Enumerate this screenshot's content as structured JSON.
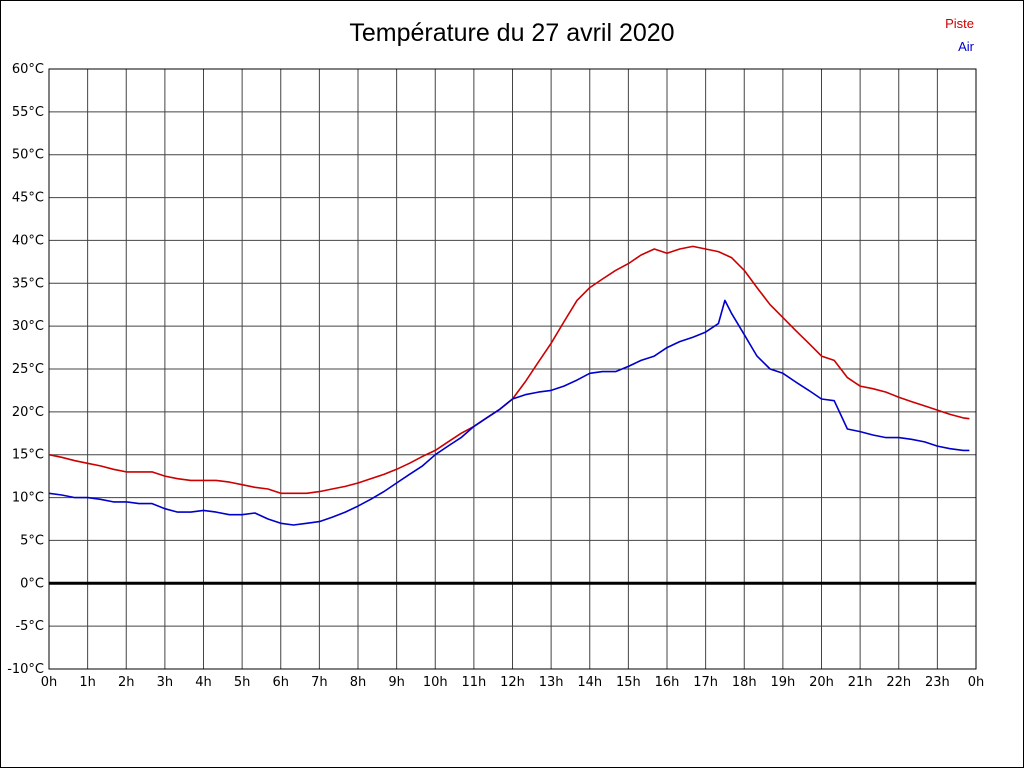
{
  "title": "Température du 27 avril 2020",
  "legend": [
    {
      "label": "Piste",
      "color": "#cc0000"
    },
    {
      "label": "Air",
      "color": "#0000cc"
    }
  ],
  "chart_data": {
    "type": "line",
    "title": "Température du 27 avril 2020",
    "xlabel": "",
    "ylabel": "",
    "xlim": [
      0,
      24
    ],
    "ylim": [
      -10,
      60
    ],
    "y_tick_step": 5,
    "grid": true,
    "grid_color": "#444444",
    "legend_position": "top-right",
    "y_tick_labels": [
      "60°C",
      "55°C",
      "50°C",
      "45°C",
      "40°C",
      "35°C",
      "30°C",
      "25°C",
      "20°C",
      "15°C",
      "10°C",
      "5°C",
      "0°C",
      "-5°C",
      "-10°C"
    ],
    "x_tick_labels": [
      "0h",
      "1h",
      "2h",
      "3h",
      "4h",
      "5h",
      "6h",
      "7h",
      "8h",
      "9h",
      "10h",
      "11h",
      "12h",
      "13h",
      "14h",
      "15h",
      "16h",
      "17h",
      "18h",
      "19h",
      "20h",
      "21h",
      "22h",
      "23h",
      "0h"
    ],
    "zero_line": {
      "value": 0,
      "color": "#000000",
      "width": 3
    },
    "series": [
      {
        "name": "Piste",
        "color": "#cc0000",
        "points": [
          [
            0,
            15
          ],
          [
            0.33,
            14.7
          ],
          [
            0.67,
            14.3
          ],
          [
            1,
            14
          ],
          [
            1.33,
            13.7
          ],
          [
            1.67,
            13.3
          ],
          [
            2,
            13
          ],
          [
            2.33,
            13
          ],
          [
            2.67,
            13
          ],
          [
            3,
            12.5
          ],
          [
            3.33,
            12.2
          ],
          [
            3.67,
            12
          ],
          [
            4,
            12
          ],
          [
            4.33,
            12
          ],
          [
            4.67,
            11.8
          ],
          [
            5,
            11.5
          ],
          [
            5.33,
            11.2
          ],
          [
            5.67,
            11
          ],
          [
            6,
            10.5
          ],
          [
            6.33,
            10.5
          ],
          [
            6.67,
            10.5
          ],
          [
            7,
            10.7
          ],
          [
            7.33,
            11
          ],
          [
            7.67,
            11.3
          ],
          [
            8,
            11.7
          ],
          [
            8.33,
            12.2
          ],
          [
            8.67,
            12.7
          ],
          [
            9,
            13.3
          ],
          [
            9.33,
            14
          ],
          [
            9.67,
            14.8
          ],
          [
            10,
            15.5
          ],
          [
            10.33,
            16.5
          ],
          [
            10.67,
            17.5
          ],
          [
            11,
            18.3
          ],
          [
            11.33,
            19.3
          ],
          [
            11.67,
            20.3
          ],
          [
            12,
            21.5
          ],
          [
            12.33,
            23.5
          ],
          [
            12.67,
            25.8
          ],
          [
            13,
            28
          ],
          [
            13.33,
            30.5
          ],
          [
            13.67,
            33
          ],
          [
            14,
            34.5
          ],
          [
            14.33,
            35.5
          ],
          [
            14.67,
            36.5
          ],
          [
            15,
            37.3
          ],
          [
            15.33,
            38.3
          ],
          [
            15.67,
            39
          ],
          [
            16,
            38.5
          ],
          [
            16.33,
            39
          ],
          [
            16.67,
            39.3
          ],
          [
            17,
            39
          ],
          [
            17.33,
            38.7
          ],
          [
            17.67,
            38
          ],
          [
            18,
            36.5
          ],
          [
            18.33,
            34.5
          ],
          [
            18.67,
            32.5
          ],
          [
            19,
            31
          ],
          [
            19.33,
            29.5
          ],
          [
            19.67,
            28
          ],
          [
            20,
            26.5
          ],
          [
            20.33,
            26
          ],
          [
            20.67,
            24
          ],
          [
            21,
            23
          ],
          [
            21.33,
            22.7
          ],
          [
            21.67,
            22.3
          ],
          [
            22,
            21.7
          ],
          [
            22.33,
            21.2
          ],
          [
            22.67,
            20.7
          ],
          [
            23,
            20.2
          ],
          [
            23.33,
            19.7
          ],
          [
            23.67,
            19.3
          ],
          [
            23.83,
            19.2
          ]
        ]
      },
      {
        "name": "Air",
        "color": "#0000cc",
        "points": [
          [
            0,
            10.5
          ],
          [
            0.33,
            10.3
          ],
          [
            0.67,
            10
          ],
          [
            1,
            10
          ],
          [
            1.33,
            9.8
          ],
          [
            1.67,
            9.5
          ],
          [
            2,
            9.5
          ],
          [
            2.33,
            9.3
          ],
          [
            2.67,
            9.3
          ],
          [
            3,
            8.7
          ],
          [
            3.33,
            8.3
          ],
          [
            3.67,
            8.3
          ],
          [
            4,
            8.5
          ],
          [
            4.33,
            8.3
          ],
          [
            4.67,
            8
          ],
          [
            5,
            8
          ],
          [
            5.33,
            8.2
          ],
          [
            5.67,
            7.5
          ],
          [
            6,
            7
          ],
          [
            6.33,
            6.8
          ],
          [
            6.67,
            7
          ],
          [
            7,
            7.2
          ],
          [
            7.33,
            7.7
          ],
          [
            7.67,
            8.3
          ],
          [
            8,
            9
          ],
          [
            8.33,
            9.8
          ],
          [
            8.67,
            10.7
          ],
          [
            9,
            11.7
          ],
          [
            9.33,
            12.7
          ],
          [
            9.67,
            13.7
          ],
          [
            10,
            15
          ],
          [
            10.33,
            16
          ],
          [
            10.67,
            17
          ],
          [
            11,
            18.3
          ],
          [
            11.33,
            19.3
          ],
          [
            11.67,
            20.3
          ],
          [
            12,
            21.5
          ],
          [
            12.33,
            22
          ],
          [
            12.67,
            22.3
          ],
          [
            13,
            22.5
          ],
          [
            13.33,
            23
          ],
          [
            13.67,
            23.7
          ],
          [
            14,
            24.5
          ],
          [
            14.33,
            24.7
          ],
          [
            14.67,
            24.7
          ],
          [
            15,
            25.3
          ],
          [
            15.33,
            26
          ],
          [
            15.67,
            26.5
          ],
          [
            16,
            27.5
          ],
          [
            16.33,
            28.2
          ],
          [
            16.67,
            28.7
          ],
          [
            17,
            29.3
          ],
          [
            17.33,
            30.3
          ],
          [
            17.5,
            33
          ],
          [
            17.67,
            31.5
          ],
          [
            18,
            29
          ],
          [
            18.33,
            26.5
          ],
          [
            18.67,
            25
          ],
          [
            19,
            24.5
          ],
          [
            19.33,
            23.5
          ],
          [
            19.67,
            22.5
          ],
          [
            20,
            21.5
          ],
          [
            20.33,
            21.3
          ],
          [
            20.67,
            18
          ],
          [
            21,
            17.7
          ],
          [
            21.33,
            17.3
          ],
          [
            21.67,
            17
          ],
          [
            22,
            17
          ],
          [
            22.33,
            16.8
          ],
          [
            22.67,
            16.5
          ],
          [
            23,
            16
          ],
          [
            23.33,
            15.7
          ],
          [
            23.67,
            15.5
          ],
          [
            23.83,
            15.5
          ]
        ]
      }
    ]
  }
}
